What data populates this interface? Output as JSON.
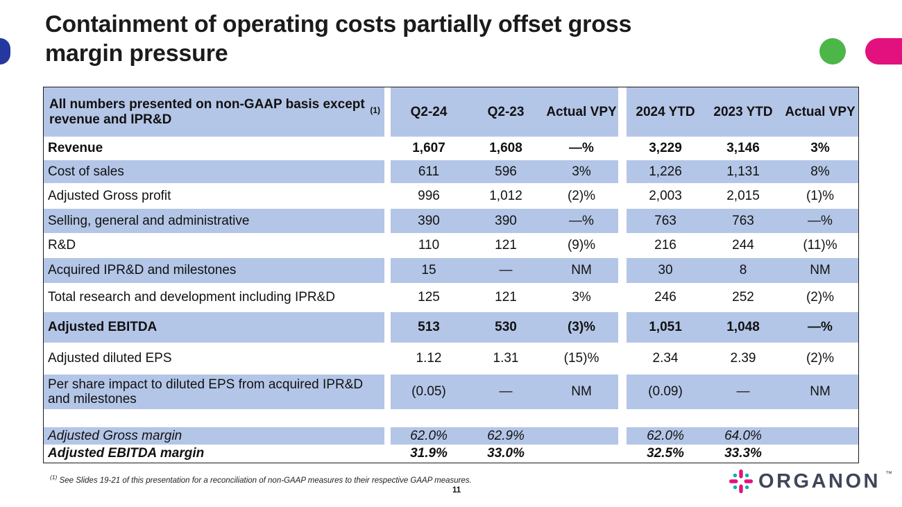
{
  "slide": {
    "title_line1": "Containment of operating costs partially offset gross",
    "title_line2": "margin pressure",
    "page_number": "11"
  },
  "colors": {
    "row_blue": "#b4c6e7",
    "accent_blue": "#2438a0",
    "accent_green": "#4cb648",
    "accent_magenta": "#e3117d",
    "logo_navy": "#3e4759",
    "brand_teal": "#00b2a9"
  },
  "footnote": {
    "marker": "(1)",
    "text": " See Slides 19-21 of this presentation for a reconciliation of non-GAAP measures to their respective GAAP measures."
  },
  "logo": {
    "text": "ORGANON",
    "tm": "™"
  },
  "table": {
    "header": {
      "label": "All numbers presented on non-GAAP basis except revenue and IPR&D",
      "label_sup": "(1)",
      "columns": [
        "Q2-24",
        "Q2-23",
        "Actual VPY",
        "2024 YTD",
        "2023 YTD",
        "Actual VPY"
      ]
    },
    "rows": [
      {
        "label": "Revenue",
        "values": [
          "1,607",
          "1,608",
          "—%",
          "3,229",
          "3,146",
          "3%"
        ],
        "bold": true,
        "shaded": false
      },
      {
        "label": "Cost of sales",
        "values": [
          "611",
          "596",
          "3%",
          "1,226",
          "1,131",
          "8%"
        ],
        "shaded": true
      },
      {
        "label": "Adjusted Gross profit",
        "values": [
          "996",
          "1,012",
          "(2)%",
          "2,003",
          "2,015",
          "(1)%"
        ],
        "shaded": false
      },
      {
        "label": "Selling, general and administrative",
        "values": [
          "390",
          "390",
          "—%",
          "763",
          "763",
          "—%"
        ],
        "shaded": true
      },
      {
        "label": "R&D",
        "values": [
          "110",
          "121",
          "(9)%",
          "216",
          "244",
          "(11)%"
        ],
        "shaded": false
      },
      {
        "label": "Acquired IPR&D and milestones",
        "values": [
          "15",
          "—",
          "NM",
          "30",
          "8",
          "NM"
        ],
        "shaded": true
      },
      {
        "label": "Total research and development including IPR&D",
        "values": [
          "125",
          "121",
          "3%",
          "246",
          "252",
          "(2)%"
        ],
        "shaded": false
      },
      {
        "label": "Adjusted EBITDA",
        "values": [
          "513",
          "530",
          "(3)%",
          "1,051",
          "1,048",
          "—%"
        ],
        "bold": true,
        "shaded": true
      },
      {
        "label": "Adjusted diluted EPS",
        "values": [
          "1.12",
          "1.31",
          "(15)%",
          "2.34",
          "2.39",
          "(2)%"
        ],
        "shaded": false
      },
      {
        "label": "Per share impact to diluted EPS from acquired IPR&D and milestones",
        "values": [
          "(0.05)",
          "—",
          "NM",
          "(0.09)",
          "—",
          "NM"
        ],
        "shaded": true
      },
      {
        "spacer": true,
        "shaded": false
      },
      {
        "label": "Adjusted Gross margin",
        "values": [
          "62.0%",
          "62.9%",
          "",
          "62.0%",
          "64.0%",
          ""
        ],
        "italic": true,
        "shaded": true
      },
      {
        "label": "Adjusted EBITDA margin",
        "values": [
          "31.9%",
          "33.0%",
          "",
          "32.5%",
          "33.3%",
          ""
        ],
        "italic": true,
        "bold": true,
        "shaded": false
      }
    ]
  }
}
